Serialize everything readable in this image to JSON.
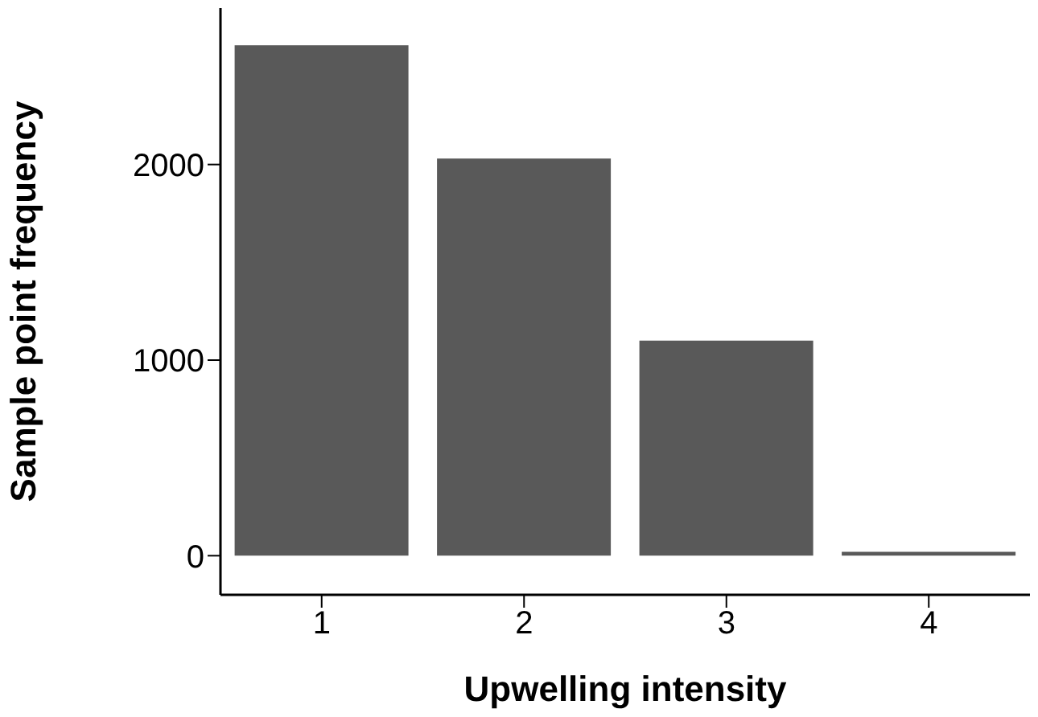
{
  "chart_data": {
    "type": "bar",
    "xlabel": "Upwelling intensity",
    "ylabel": "Sample point frequency",
    "categories": [
      "1",
      "2",
      "3",
      "4"
    ],
    "values": [
      2610,
      2030,
      1100,
      20
    ],
    "color": "#595959",
    "ylim": [
      -200,
      2800
    ],
    "yticks": [
      0,
      1000,
      2000
    ],
    "grid": false
  }
}
